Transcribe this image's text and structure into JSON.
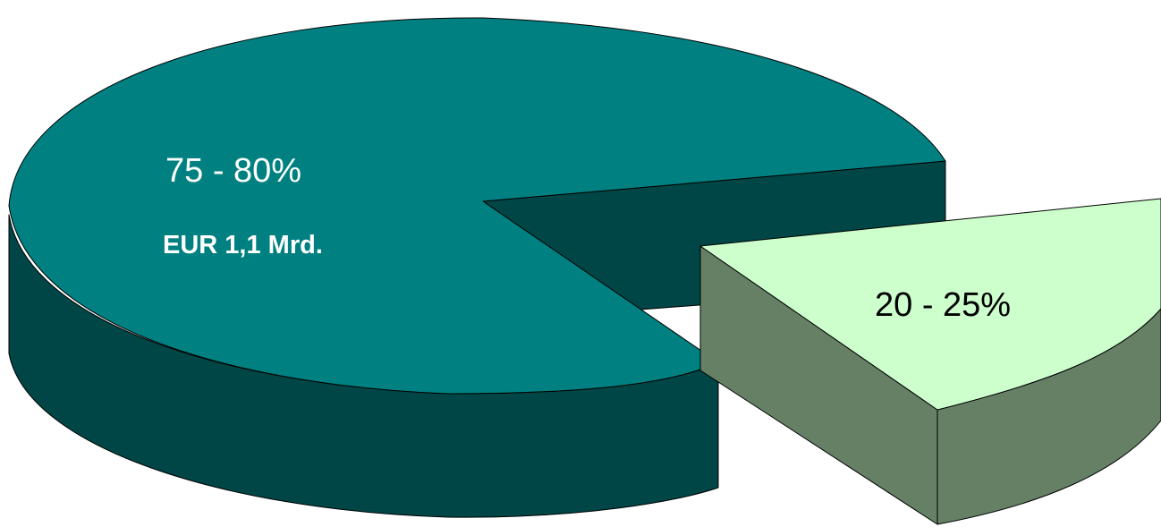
{
  "chart_data": {
    "type": "pie",
    "style": "3d-exploded",
    "title": "",
    "slices": [
      {
        "label": "75 - 80%",
        "sublabel": "EUR 1,1 Mrd.",
        "value": 77.5,
        "color_top": "#008080",
        "color_side": "#004646",
        "label_color": "#ffffff",
        "exploded": false
      },
      {
        "label": "20 - 25%",
        "value": 22.5,
        "color_top": "#ccffcc",
        "color_side": "#668066",
        "label_color": "#000000",
        "exploded": true
      }
    ]
  }
}
